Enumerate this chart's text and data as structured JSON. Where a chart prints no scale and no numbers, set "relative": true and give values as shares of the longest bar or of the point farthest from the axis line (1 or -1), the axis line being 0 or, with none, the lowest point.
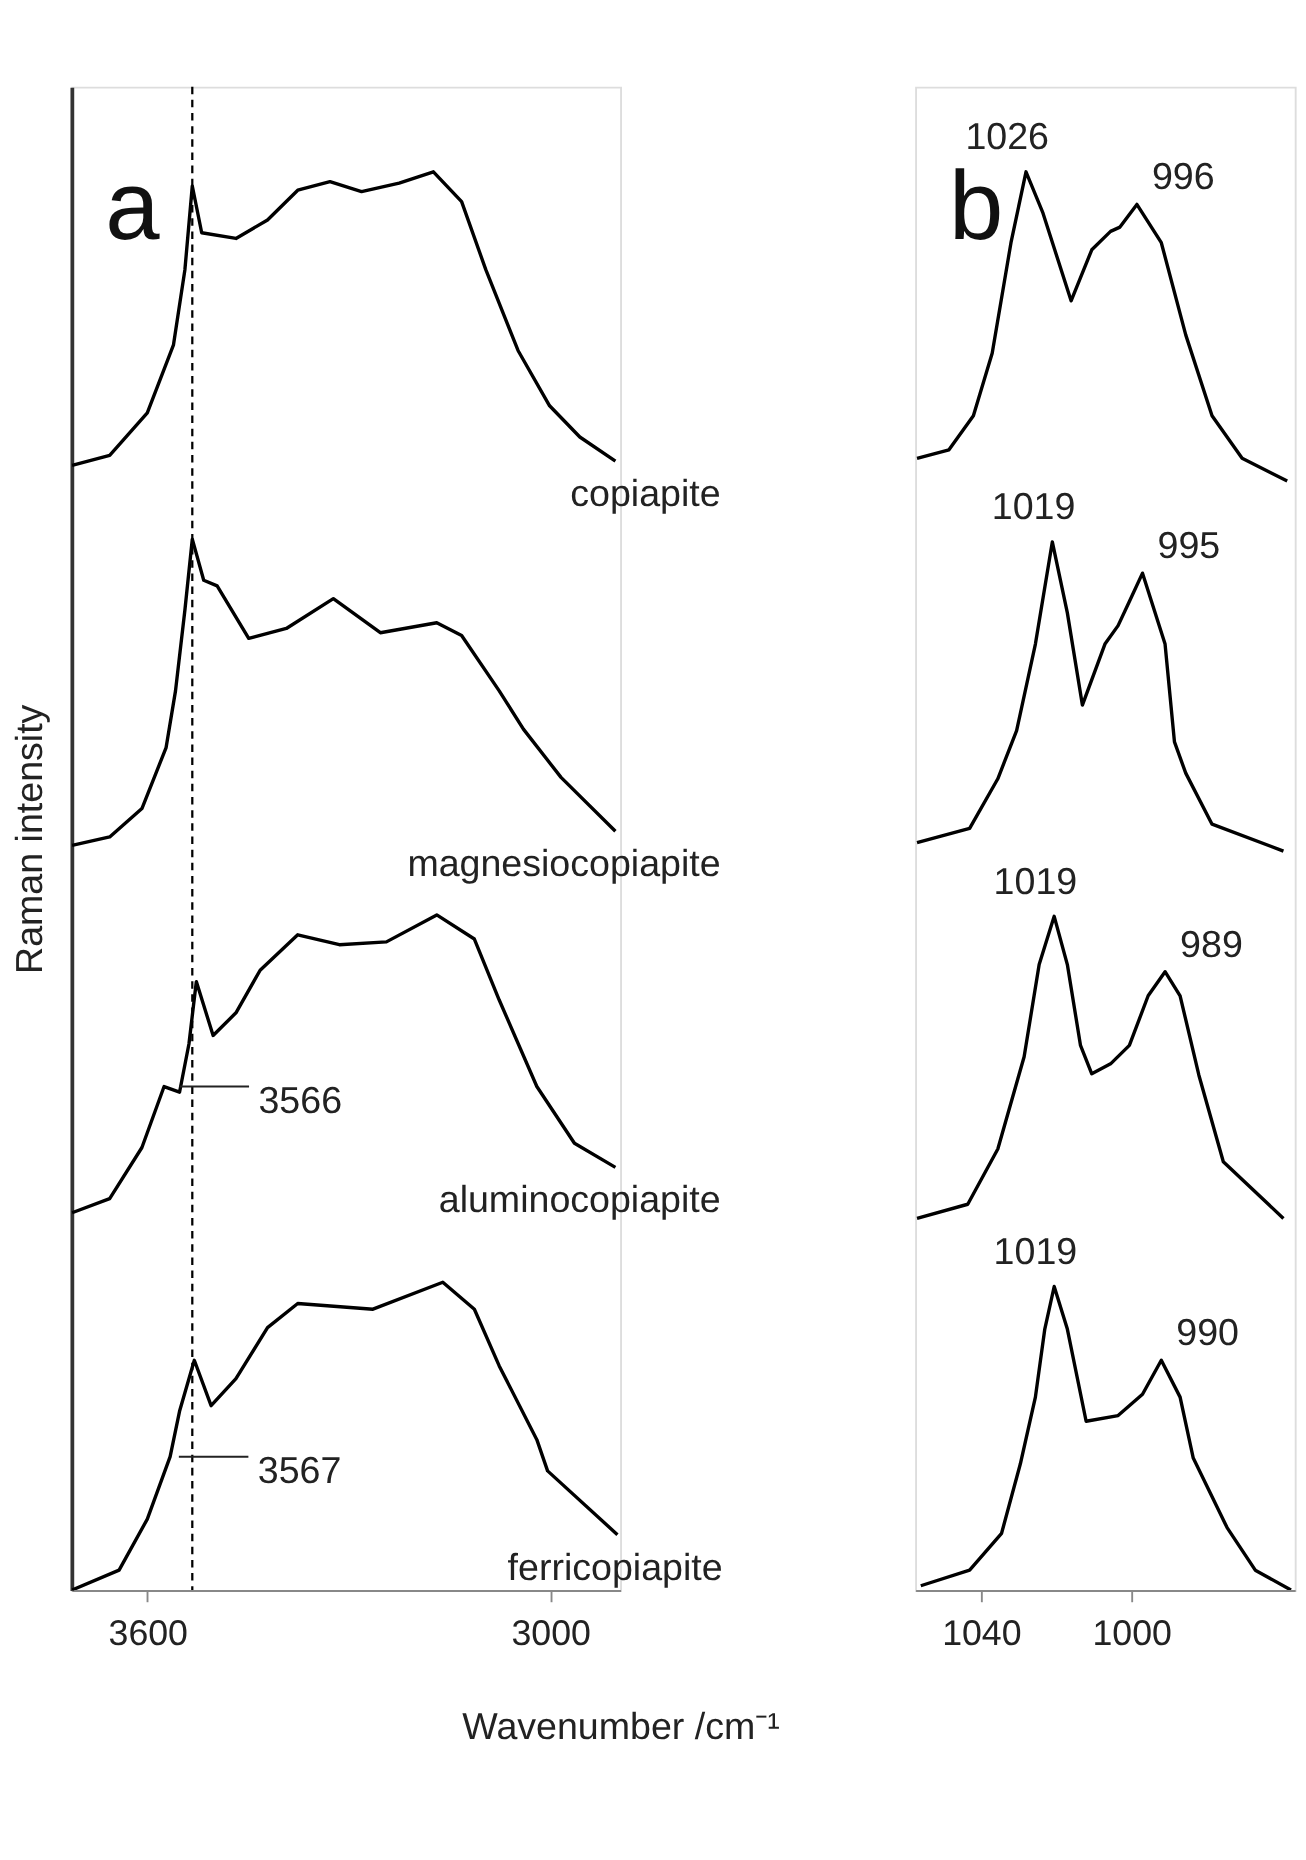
{
  "chart_data": [
    {
      "type": "line",
      "relative": true,
      "xlabel": "Wavenumber /cm⁻¹",
      "ylabel": "Raman intensity",
      "xlim": [
        3713,
        2896
      ],
      "xticks": [
        3600,
        3000
      ],
      "series": [
        {
          "name": "copiapite",
          "color": "#000000",
          "x": [
            3712,
            3656,
            3600,
            3561,
            3544,
            3533,
            3519,
            3468,
            3421,
            3376,
            3328,
            3281,
            3225,
            3174,
            3132,
            3096,
            3048,
            3001,
            2956,
            2903
          ],
          "values": [
            0.793,
            0.8,
            0.83,
            0.878,
            0.931,
            0.99,
            0.957,
            0.953,
            0.966,
            0.987,
            0.993,
            0.986,
            0.992,
            1.0,
            0.979,
            0.931,
            0.874,
            0.835,
            0.813,
            0.796
          ]
        },
        {
          "name": "magnesiocopiapite",
          "color": "#000000",
          "x": [
            3712,
            3656,
            3608,
            3572,
            3558,
            3544,
            3533,
            3516,
            3496,
            3449,
            3393,
            3323,
            3253,
            3169,
            3132,
            3076,
            3040,
            2984,
            2903
          ],
          "values": [
            0.525,
            0.531,
            0.551,
            0.594,
            0.634,
            0.691,
            0.741,
            0.712,
            0.708,
            0.671,
            0.678,
            0.699,
            0.675,
            0.682,
            0.673,
            0.634,
            0.607,
            0.573,
            0.535
          ]
        },
        {
          "name": "aluminocopiapite",
          "color": "#000000",
          "x": [
            3712,
            3656,
            3608,
            3575,
            3552,
            3538,
            3527,
            3502,
            3468,
            3432,
            3376,
            3314,
            3244,
            3169,
            3113,
            3076,
            3020,
            2964,
            2903
          ],
          "values": [
            0.266,
            0.276,
            0.312,
            0.355,
            0.351,
            0.385,
            0.429,
            0.391,
            0.407,
            0.437,
            0.462,
            0.455,
            0.457,
            0.476,
            0.459,
            0.416,
            0.355,
            0.315,
            0.298
          ]
        },
        {
          "name": "ferricopiapite",
          "color": "#000000",
          "x": [
            3712,
            3642,
            3600,
            3566,
            3552,
            3530,
            3505,
            3468,
            3421,
            3376,
            3264,
            3160,
            3113,
            3076,
            3020,
            3004,
            2900
          ],
          "values": [
            0,
            0.014,
            0.05,
            0.094,
            0.126,
            0.162,
            0.13,
            0.149,
            0.185,
            0.202,
            0.198,
            0.217,
            0.198,
            0.158,
            0.106,
            0.084,
            0.039
          ]
        }
      ],
      "ref_lines": [
        {
          "axis": "x",
          "value": 3533,
          "color": "#000000",
          "line_style": "dashed"
        }
      ],
      "annotations": [
        "a",
        {
          "text": "3566",
          "x": 3566,
          "y": 0.355
        },
        {
          "text": "3567",
          "x": 3567,
          "y": 0.094
        }
      ]
    },
    {
      "type": "line",
      "relative": true,
      "xlim": [
        1057.5,
        956.5
      ],
      "xticks": [
        1040,
        1000
      ],
      "series": [
        {
          "color": "#000000",
          "x": [
            1057,
            1048.5,
            1042,
            1037,
            1032,
            1028,
            1023.5,
            1016,
            1010.5,
            1005.5,
            1003,
            998.5,
            992,
            985.5,
            978.5,
            970.5,
            958.5
          ],
          "values": [
            0.798,
            0.804,
            0.828,
            0.872,
            0.95,
            1.0,
            0.971,
            0.909,
            0.945,
            0.958,
            0.961,
            0.977,
            0.95,
            0.885,
            0.828,
            0.798,
            0.782
          ]
        },
        {
          "color": "#000000",
          "x": [
            1057,
            1043,
            1035.5,
            1030.5,
            1025.5,
            1021,
            1017,
            1013,
            1007,
            1003.5,
            1000.5,
            997,
            991,
            988.5,
            985.5,
            978.5,
            959.5
          ],
          "values": [
            0.527,
            0.537,
            0.572,
            0.606,
            0.667,
            0.739,
            0.689,
            0.624,
            0.667,
            0.68,
            0.697,
            0.717,
            0.667,
            0.598,
            0.576,
            0.54,
            0.521
          ]
        },
        {
          "color": "#000000",
          "x": [
            1057,
            1043.5,
            1035.5,
            1028.5,
            1024.5,
            1020.5,
            1017,
            1013.5,
            1010.5,
            1005.5,
            1000.5,
            995.5,
            991,
            987,
            982,
            975.5,
            959.5
          ],
          "values": [
            0.262,
            0.272,
            0.311,
            0.376,
            0.441,
            0.475,
            0.441,
            0.384,
            0.364,
            0.371,
            0.384,
            0.419,
            0.436,
            0.419,
            0.363,
            0.302,
            0.262
          ]
        },
        {
          "color": "#000000",
          "x": [
            1056,
            1043,
            1034.5,
            1029.5,
            1025.5,
            1023,
            1020.5,
            1017,
            1012,
            1003.5,
            997,
            992,
            987,
            983.5,
            974.5,
            967,
            957.5
          ],
          "values": [
            0.003,
            0.014,
            0.04,
            0.089,
            0.136,
            0.184,
            0.214,
            0.184,
            0.119,
            0.123,
            0.138,
            0.162,
            0.136,
            0.093,
            0.044,
            0.014,
            0
          ]
        }
      ],
      "annotations": [
        "b",
        {
          "text": "1026",
          "x": 1028,
          "y": 1.0
        },
        {
          "text": "996",
          "x": 998.5,
          "y": 0.977
        },
        {
          "text": "1019",
          "x": 1021,
          "y": 0.739
        },
        {
          "text": "995",
          "x": 997,
          "y": 0.717
        },
        {
          "text": "1019",
          "x": 1020.5,
          "y": 0.475
        },
        {
          "text": "989",
          "x": 991,
          "y": 0.436
        },
        {
          "text": "1019",
          "x": 1020.5,
          "y": 0.214
        },
        {
          "text": "990",
          "x": 992,
          "y": 0.162
        }
      ]
    }
  ]
}
